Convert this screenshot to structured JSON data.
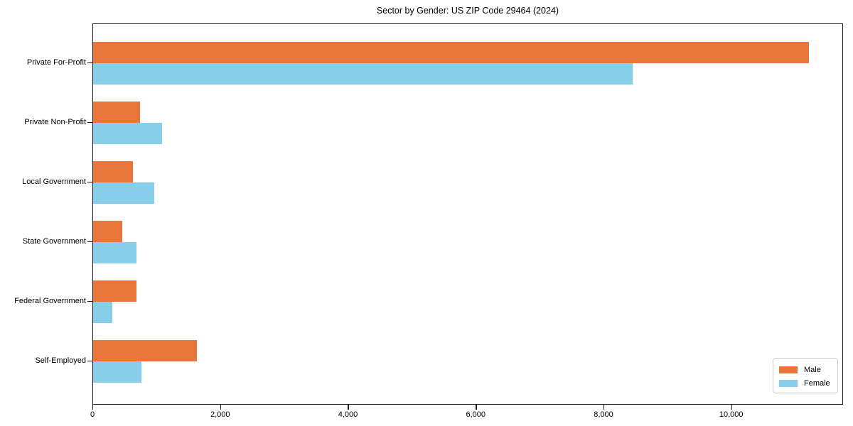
{
  "chart_data": {
    "type": "bar",
    "orientation": "horizontal",
    "title": "Sector by Gender: US ZIP Code 29464 (2024)",
    "categories": [
      "Private For-Profit",
      "Private Non-Profit",
      "Local Government",
      "State Government",
      "Federal Government",
      "Self-Employed"
    ],
    "series": [
      {
        "name": "Male",
        "color": "#E8763B",
        "values": [
          11200,
          730,
          620,
          460,
          680,
          1620
        ]
      },
      {
        "name": "Female",
        "color": "#87CEEB",
        "values": [
          8440,
          1080,
          960,
          680,
          300,
          760
        ]
      }
    ],
    "xlabel": "",
    "ylabel": "",
    "xlim": [
      0,
      11750
    ],
    "xticks": {
      "values": [
        0,
        2000,
        4000,
        6000,
        8000,
        10000
      ],
      "labels": [
        "0",
        "2,000",
        "4,000",
        "6,000",
        "8,000",
        "10,000"
      ]
    },
    "grid": false,
    "legend_position": "lower right"
  },
  "legend": {
    "male_label": "Male",
    "female_label": "Female"
  },
  "colors": {
    "male": "#E8763B",
    "female": "#87CEEB",
    "axis": "#1a1a1a",
    "legend_border": "#cccccc"
  }
}
